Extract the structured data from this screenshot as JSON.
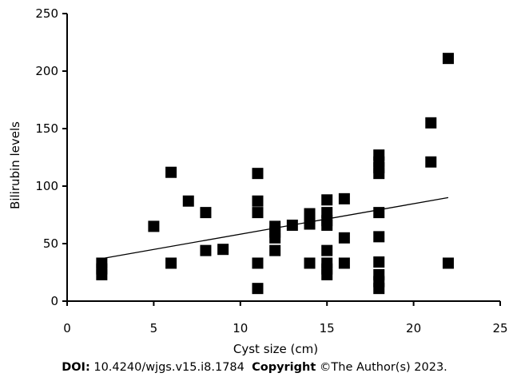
{
  "chart_data": {
    "type": "scatter",
    "title": "",
    "xlabel": "Cyst size (cm)",
    "ylabel": "Bilirubin levels",
    "xlim": [
      0,
      25
    ],
    "ylim": [
      0,
      250
    ],
    "xticks": [
      "0",
      "5",
      "10",
      "15",
      "20",
      "25"
    ],
    "yticks": [
      "0",
      "50",
      "100",
      "150",
      "200",
      "250"
    ],
    "grid": false,
    "legend": "none",
    "marker": "square",
    "marker_color": "#000000",
    "points": [
      {
        "x": 2,
        "y": 33
      },
      {
        "x": 2,
        "y": 28
      },
      {
        "x": 2,
        "y": 23
      },
      {
        "x": 5,
        "y": 65
      },
      {
        "x": 6,
        "y": 112
      },
      {
        "x": 6,
        "y": 33
      },
      {
        "x": 7,
        "y": 87
      },
      {
        "x": 8,
        "y": 77
      },
      {
        "x": 8,
        "y": 44
      },
      {
        "x": 9,
        "y": 45
      },
      {
        "x": 11,
        "y": 111
      },
      {
        "x": 11,
        "y": 87
      },
      {
        "x": 11,
        "y": 77
      },
      {
        "x": 11,
        "y": 33
      },
      {
        "x": 11,
        "y": 11
      },
      {
        "x": 12,
        "y": 65
      },
      {
        "x": 12,
        "y": 60
      },
      {
        "x": 12,
        "y": 55
      },
      {
        "x": 12,
        "y": 44
      },
      {
        "x": 13,
        "y": 66
      },
      {
        "x": 14,
        "y": 76
      },
      {
        "x": 14,
        "y": 72
      },
      {
        "x": 14,
        "y": 67
      },
      {
        "x": 14,
        "y": 33
      },
      {
        "x": 15,
        "y": 88
      },
      {
        "x": 15,
        "y": 77
      },
      {
        "x": 15,
        "y": 70
      },
      {
        "x": 15,
        "y": 66
      },
      {
        "x": 15,
        "y": 44
      },
      {
        "x": 15,
        "y": 33
      },
      {
        "x": 15,
        "y": 28
      },
      {
        "x": 15,
        "y": 23
      },
      {
        "x": 16,
        "y": 89
      },
      {
        "x": 16,
        "y": 55
      },
      {
        "x": 16,
        "y": 33
      },
      {
        "x": 18,
        "y": 127
      },
      {
        "x": 18,
        "y": 121
      },
      {
        "x": 18,
        "y": 116
      },
      {
        "x": 18,
        "y": 111
      },
      {
        "x": 18,
        "y": 77
      },
      {
        "x": 18,
        "y": 56
      },
      {
        "x": 18,
        "y": 34
      },
      {
        "x": 18,
        "y": 23
      },
      {
        "x": 18,
        "y": 17
      },
      {
        "x": 18,
        "y": 11
      },
      {
        "x": 21,
        "y": 155
      },
      {
        "x": 21,
        "y": 121
      },
      {
        "x": 22,
        "y": 211
      },
      {
        "x": 22,
        "y": 33
      }
    ],
    "trendline": {
      "x": [
        2,
        22
      ],
      "y": [
        37,
        90
      ]
    }
  },
  "footer": {
    "doi_label": "DOI:",
    "doi_value": "10.4240/wjgs.v15.i8.1784",
    "copyright_label": "Copyright",
    "copyright_value": "©The Author(s) 2023."
  }
}
